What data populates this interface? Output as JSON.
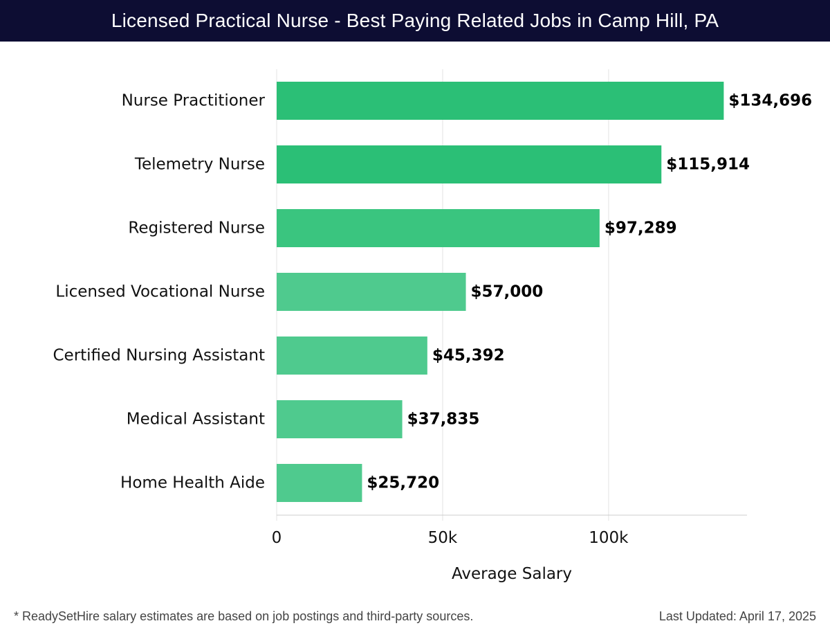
{
  "header": {
    "title": "Licensed Practical Nurse - Best Paying Related Jobs in Camp Hill, PA"
  },
  "chart_data": {
    "type": "bar",
    "orientation": "horizontal",
    "categories": [
      "Nurse Practitioner",
      "Telemetry Nurse",
      "Registered Nurse",
      "Licensed Vocational Nurse",
      "Certified Nursing Assistant",
      "Medical Assistant",
      "Home Health Aide"
    ],
    "values": [
      134696,
      115914,
      97289,
      57000,
      45392,
      37835,
      25720
    ],
    "data_labels": [
      "$134,696",
      "$115,914",
      "$97,289",
      "$57,000",
      "$45,392",
      "$37,835",
      "$25,720"
    ],
    "bar_colors": [
      "#2bbf76",
      "#2bbf76",
      "#3ac57f",
      "#4fca8e",
      "#4fca8e",
      "#4fca8e",
      "#4fca8e"
    ],
    "xlabel": "Average Salary",
    "ylabel": "",
    "xlim": [
      0,
      141700
    ],
    "xticks": [
      0,
      50000,
      100000
    ],
    "xtick_labels": [
      "0",
      "50k",
      "100k"
    ],
    "grid": true
  },
  "footer": {
    "note": "* ReadySetHire salary estimates are based on job postings and third-party sources.",
    "updated": "Last Updated: April 17, 2025"
  },
  "colors": {
    "header_bg": "#0d0d33",
    "grid": "#e3e3e3"
  }
}
